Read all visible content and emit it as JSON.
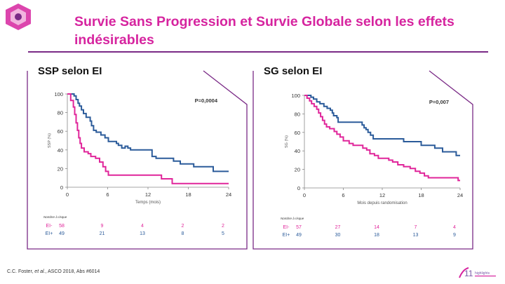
{
  "slide": {
    "title_line1": "Survie Sans Progression et Survie Globale selon les effets",
    "title_line2": "indésirables"
  },
  "colors": {
    "accent": "#d6249f",
    "frame": "#7a2a86",
    "ei_minus": "#e0259a",
    "ei_plus": "#2b5b9a"
  },
  "footnote": {
    "authors": "C.C. Foster,",
    "etal": "et al.",
    "ref": ", ASCO 2018, Abs #6014"
  },
  "conference_logo": {
    "number": "11",
    "text": "highlights"
  },
  "chart_data": [
    {
      "type": "line",
      "step": true,
      "title": "SSP selon EI",
      "ylabel": "SSP (%)",
      "xlabel": "Temps (mois)",
      "xlim": [
        0,
        24
      ],
      "ylim": [
        0,
        100
      ],
      "xticks": [
        0,
        6,
        12,
        18,
        24
      ],
      "yticks": [
        0,
        20,
        40,
        60,
        80,
        100
      ],
      "annotation": "P=0,0004",
      "series": [
        {
          "name": "EI-",
          "color": "#e0259a",
          "points": [
            [
              0,
              100
            ],
            [
              0.5,
              93
            ],
            [
              0.9,
              86
            ],
            [
              1.1,
              78
            ],
            [
              1.3,
              69
            ],
            [
              1.5,
              61
            ],
            [
              1.7,
              53
            ],
            [
              1.9,
              47
            ],
            [
              2.1,
              42
            ],
            [
              2.5,
              38
            ],
            [
              3.1,
              36
            ],
            [
              3.5,
              33
            ],
            [
              4.2,
              31
            ],
            [
              4.8,
              27
            ],
            [
              5.3,
              22
            ],
            [
              5.7,
              17
            ],
            [
              6.1,
              13
            ],
            [
              13.8,
              13
            ],
            [
              14,
              9
            ],
            [
              15.4,
              9
            ],
            [
              15.6,
              4
            ],
            [
              24,
              4
            ]
          ]
        },
        {
          "name": "EI+",
          "color": "#2b5b9a",
          "points": [
            [
              0,
              100
            ],
            [
              0.7,
              100
            ],
            [
              1.0,
              98
            ],
            [
              1.3,
              94
            ],
            [
              1.6,
              90
            ],
            [
              1.8,
              87
            ],
            [
              2.1,
              83
            ],
            [
              2.4,
              79
            ],
            [
              2.8,
              75
            ],
            [
              3.4,
              71
            ],
            [
              3.6,
              66
            ],
            [
              3.9,
              61
            ],
            [
              4.3,
              59
            ],
            [
              5.0,
              56
            ],
            [
              5.6,
              53
            ],
            [
              6.1,
              49
            ],
            [
              7.3,
              47
            ],
            [
              7.6,
              45
            ],
            [
              8.1,
              42
            ],
            [
              8.6,
              44
            ],
            [
              9.0,
              42
            ],
            [
              9.4,
              40
            ],
            [
              12.3,
              40
            ],
            [
              12.6,
              33
            ],
            [
              13.2,
              31
            ],
            [
              15.5,
              31
            ],
            [
              15.8,
              28
            ],
            [
              16.5,
              28
            ],
            [
              16.8,
              25
            ],
            [
              18.5,
              25
            ],
            [
              18.8,
              22
            ],
            [
              21.4,
              22
            ],
            [
              21.7,
              17
            ],
            [
              24,
              17
            ]
          ]
        }
      ],
      "risk_table": {
        "caption": "Nombre à risque",
        "times": [
          0,
          6,
          12,
          18,
          24
        ],
        "rows": [
          {
            "label": "EI-",
            "values": [
              "58",
              "9",
              "4",
              "2",
              "2"
            ]
          },
          {
            "label": "EI+",
            "values": [
              "49",
              "21",
              "13",
              "8",
              "5"
            ]
          }
        ]
      }
    },
    {
      "type": "line",
      "step": true,
      "title": "SG selon EI",
      "ylabel": "SG (%)",
      "xlabel": "Mois depuis randomisation",
      "xlim": [
        0,
        24
      ],
      "ylim": [
        0,
        100
      ],
      "xticks": [
        0,
        6,
        12,
        18,
        24
      ],
      "yticks": [
        0,
        20,
        40,
        60,
        80,
        100
      ],
      "annotation": "P=0,007",
      "series": [
        {
          "name": "EI-",
          "color": "#e0259a",
          "points": [
            [
              0,
              100
            ],
            [
              0.4,
              97
            ],
            [
              0.8,
              94
            ],
            [
              1.1,
              91
            ],
            [
              1.5,
              88
            ],
            [
              1.9,
              85
            ],
            [
              2.2,
              81
            ],
            [
              2.5,
              77
            ],
            [
              2.8,
              73
            ],
            [
              3.1,
              69
            ],
            [
              3.4,
              66
            ],
            [
              3.9,
              64
            ],
            [
              4.6,
              61
            ],
            [
              5.0,
              58
            ],
            [
              5.5,
              55
            ],
            [
              6.0,
              51
            ],
            [
              6.9,
              48
            ],
            [
              7.5,
              46
            ],
            [
              8.7,
              46
            ],
            [
              9.0,
              43
            ],
            [
              9.6,
              41
            ],
            [
              10.1,
              37
            ],
            [
              10.8,
              35
            ],
            [
              11.4,
              32
            ],
            [
              12.7,
              32
            ],
            [
              13.0,
              30
            ],
            [
              13.6,
              28
            ],
            [
              14.4,
              25
            ],
            [
              15.3,
              23
            ],
            [
              16.3,
              21
            ],
            [
              17.1,
              18
            ],
            [
              17.8,
              16
            ],
            [
              18.5,
              13
            ],
            [
              19.1,
              11
            ],
            [
              23.5,
              11
            ],
            [
              23.7,
              8
            ],
            [
              24,
              8
            ]
          ]
        },
        {
          "name": "EI+",
          "color": "#2b5b9a",
          "points": [
            [
              0,
              100
            ],
            [
              0.6,
              100
            ],
            [
              1.0,
              98
            ],
            [
              1.4,
              96
            ],
            [
              1.9,
              93
            ],
            [
              2.4,
              91
            ],
            [
              3.0,
              88
            ],
            [
              3.5,
              86
            ],
            [
              4.0,
              84
            ],
            [
              4.3,
              81
            ],
            [
              4.5,
              78
            ],
            [
              5.0,
              76
            ],
            [
              5.2,
              71
            ],
            [
              8.6,
              71
            ],
            [
              8.9,
              68
            ],
            [
              9.2,
              65
            ],
            [
              9.5,
              63
            ],
            [
              9.8,
              60
            ],
            [
              10.2,
              57
            ],
            [
              10.6,
              53
            ],
            [
              15.0,
              53
            ],
            [
              15.3,
              50
            ],
            [
              17.8,
              50
            ],
            [
              18.0,
              46
            ],
            [
              19.8,
              46
            ],
            [
              20.1,
              43
            ],
            [
              21.0,
              43
            ],
            [
              21.3,
              39
            ],
            [
              23.2,
              39
            ],
            [
              23.4,
              35
            ],
            [
              24,
              35
            ]
          ]
        }
      ],
      "risk_table": {
        "caption": "Nombre à risque",
        "times": [
          0,
          6,
          12,
          18,
          24
        ],
        "rows": [
          {
            "label": "EI-",
            "values": [
              "57",
              "27",
              "14",
              "7",
              "4"
            ]
          },
          {
            "label": "EI+",
            "values": [
              "49",
              "30",
              "18",
              "13",
              "9"
            ]
          }
        ]
      }
    }
  ]
}
